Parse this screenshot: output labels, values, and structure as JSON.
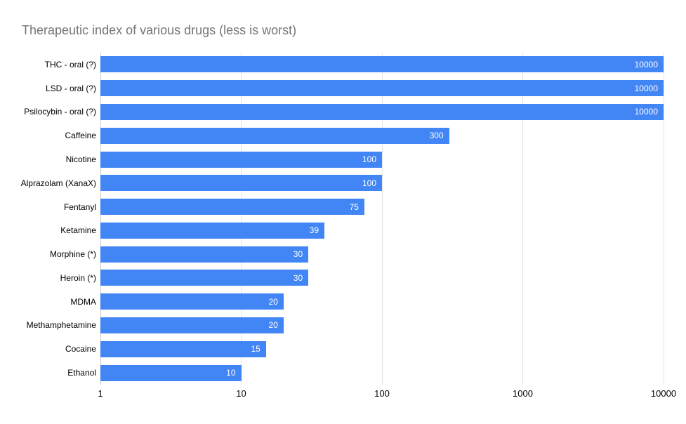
{
  "title": "Therapeutic index of various drugs (less is worst)",
  "colors": {
    "bar": "#4285F4",
    "title_text": "#757575",
    "axis_text": "#000000",
    "category_text": "#000000",
    "value_text": "#FFFFFF",
    "gridline": "#E3E3E3",
    "baseline": "#CCCCCC",
    "background": "#FFFFFF"
  },
  "chart_data": {
    "type": "bar",
    "orientation": "horizontal",
    "title": "Therapeutic index of various drugs (less is worst)",
    "xlabel": "",
    "ylabel": "",
    "x_scale": "log",
    "xlim": [
      1,
      10000
    ],
    "x_ticks": [
      1,
      10,
      100,
      1000,
      10000
    ],
    "grid": true,
    "legend": "none",
    "categories": [
      "THC - oral (?)",
      "LSD - oral (?)",
      "Psilocybin - oral (?)",
      "Caffeine",
      "Nicotine",
      "Alprazolam (XanaX)",
      "Fentanyl",
      "Ketamine",
      "Morphine (*)",
      "Heroin (*)",
      "MDMA",
      "Methamphetamine",
      "Cocaine",
      "Ethanol"
    ],
    "values": [
      10000,
      10000,
      10000,
      300,
      100,
      100,
      75,
      39,
      30,
      30,
      20,
      20,
      15,
      10
    ]
  }
}
